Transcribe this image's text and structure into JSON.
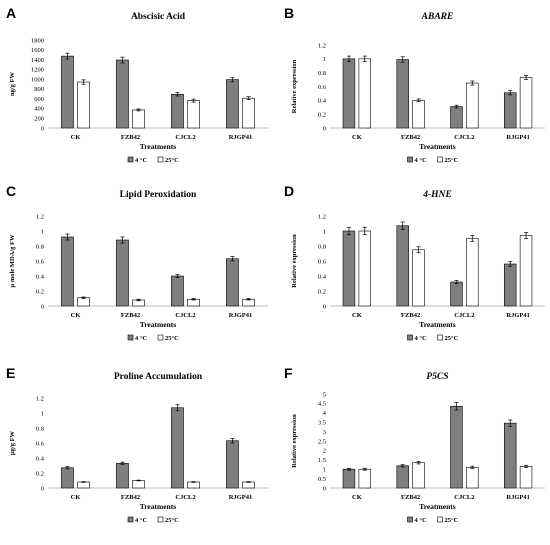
{
  "colors": {
    "cold": "#7f7f7f",
    "warm": "#ffffff",
    "stroke": "#000000",
    "axis": "#a6a6a6"
  },
  "chart_data": [
    {
      "type": "bar",
      "letter": "A",
      "title": "Abscisic Acid",
      "title_italic": false,
      "xlabel": "Treatments",
      "ylabel": "ng/g FW",
      "categories": [
        "CK",
        "FZB42",
        "CJCL2",
        "RJGP41"
      ],
      "ylim": [
        0,
        1800
      ],
      "yticks": [
        0,
        200,
        400,
        600,
        800,
        1000,
        1200,
        1400,
        1600,
        1800
      ],
      "series": [
        {
          "name": "4 °C",
          "values": [
            1470,
            1390,
            690,
            990
          ],
          "errors": [
            60,
            60,
            35,
            45
          ]
        },
        {
          "name": "25°C",
          "values": [
            940,
            370,
            560,
            610
          ],
          "errors": [
            45,
            20,
            30,
            30
          ]
        }
      ],
      "legend_position": "bottom"
    },
    {
      "type": "bar",
      "letter": "B",
      "title": "ABARE",
      "title_italic": true,
      "xlabel": "Treatments",
      "ylabel": "Relative expression",
      "categories": [
        "CK",
        "FZB42",
        "CJCL2",
        "RJGP41"
      ],
      "ylim": [
        0,
        1.2
      ],
      "yticks": [
        "0",
        "0.2",
        "0.4",
        "0.6",
        "0.8",
        "1",
        "1.2"
      ],
      "series": [
        {
          "name": "4 °C",
          "values": [
            1.0,
            0.99,
            0.31,
            0.51
          ],
          "errors": [
            0.04,
            0.04,
            0.02,
            0.03
          ]
        },
        {
          "name": "25°C",
          "values": [
            1.0,
            0.4,
            0.65,
            0.73
          ],
          "errors": [
            0.04,
            0.02,
            0.03,
            0.03
          ]
        }
      ],
      "legend_position": "bottom"
    },
    {
      "type": "bar",
      "letter": "C",
      "title": "Lipid Peroxidation",
      "title_italic": false,
      "xlabel": "Treatments",
      "ylabel": "μ mole MDA/g FW",
      "categories": [
        "CK",
        "FZB42",
        "CJCL2",
        "RJGP41"
      ],
      "ylim": [
        0,
        1.2
      ],
      "yticks": [
        "0",
        "0.2",
        "0.4",
        "0.6",
        "0.8",
        "1",
        "1.2"
      ],
      "series": [
        {
          "name": "4 °C",
          "values": [
            0.92,
            0.88,
            0.4,
            0.63
          ],
          "errors": [
            0.04,
            0.04,
            0.02,
            0.03
          ]
        },
        {
          "name": "25°C",
          "values": [
            0.11,
            0.08,
            0.09,
            0.09
          ],
          "errors": [
            0.01,
            0.01,
            0.01,
            0.01
          ]
        }
      ],
      "legend_position": "bottom"
    },
    {
      "type": "bar",
      "letter": "D",
      "title": "4-HNE",
      "title_italic": true,
      "xlabel": "Treatments",
      "ylabel": "Relative expression",
      "categories": [
        "CK",
        "FZB42",
        "CJCL2",
        "RJGP41"
      ],
      "ylim": [
        0,
        1.2
      ],
      "yticks": [
        "0",
        "0.2",
        "0.4",
        "0.6",
        "0.8",
        "1",
        "1.2"
      ],
      "series": [
        {
          "name": "4 °C",
          "values": [
            1.0,
            1.07,
            0.32,
            0.56
          ],
          "errors": [
            0.05,
            0.05,
            0.02,
            0.03
          ]
        },
        {
          "name": "25°C",
          "values": [
            1.0,
            0.75,
            0.9,
            0.94
          ],
          "errors": [
            0.05,
            0.04,
            0.04,
            0.04
          ]
        }
      ],
      "legend_position": "bottom"
    },
    {
      "type": "bar",
      "letter": "E",
      "title": "Proline Accumulation",
      "title_italic": false,
      "xlabel": "Treatments",
      "ylabel": "μg/g FW",
      "categories": [
        "CK",
        "FZB42",
        "CJCL2",
        "RJGP41"
      ],
      "ylim": [
        0,
        1.2
      ],
      "yticks": [
        "0",
        "0.2",
        "0.4",
        "0.6",
        "0.8",
        "1",
        "1.2"
      ],
      "series": [
        {
          "name": "4 °C",
          "values": [
            0.27,
            0.33,
            1.07,
            0.63
          ],
          "errors": [
            0.015,
            0.015,
            0.04,
            0.03
          ]
        },
        {
          "name": "25°C",
          "values": [
            0.08,
            0.1,
            0.08,
            0.08
          ],
          "errors": [
            0.005,
            0.005,
            0.005,
            0.005
          ]
        }
      ],
      "legend_position": "bottom"
    },
    {
      "type": "bar",
      "letter": "F",
      "title": "P5CS",
      "title_italic": true,
      "xlabel": "Treatments",
      "ylabel": "Relative expression",
      "categories": [
        "CK",
        "FZB42",
        "CJCL2",
        "RJGP41"
      ],
      "ylim": [
        0,
        5
      ],
      "yticks": [
        "0",
        "0.5",
        "1",
        "1.5",
        "2",
        "2.5",
        "3",
        "3.5",
        "4",
        "4.5",
        "5"
      ],
      "series": [
        {
          "name": "4 °C",
          "values": [
            1.0,
            1.18,
            4.35,
            3.45
          ],
          "errors": [
            0.05,
            0.06,
            0.2,
            0.17
          ]
        },
        {
          "name": "25°C",
          "values": [
            1.0,
            1.35,
            1.1,
            1.15
          ],
          "errors": [
            0.05,
            0.07,
            0.06,
            0.06
          ]
        }
      ],
      "legend_position": "bottom"
    }
  ]
}
